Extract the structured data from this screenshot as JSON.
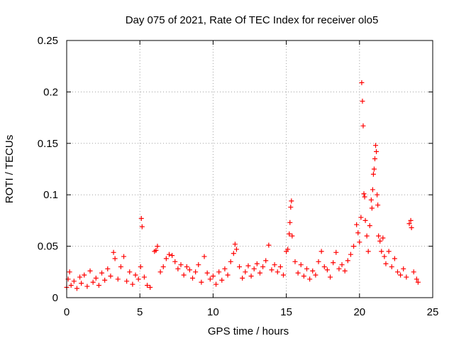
{
  "chart_data": {
    "type": "scatter",
    "title": "Day 075 of 2021, Rate Of TEC Index for receiver olo5",
    "xlabel": "GPS time / hours",
    "ylabel": "ROTI / TECUs",
    "xlim": [
      0,
      25
    ],
    "ylim": [
      0,
      0.25
    ],
    "xticks": [
      "0",
      "5",
      "10",
      "15",
      "20",
      "25"
    ],
    "yticks": [
      "0",
      "0.05",
      "0.1",
      "0.15",
      "0.2",
      "0.25"
    ],
    "grid": true,
    "marker": "+",
    "color": "#ff0000",
    "series": [
      {
        "points": [
          [
            0.0,
            0.01
          ],
          [
            0.1,
            0.018
          ],
          [
            0.2,
            0.025
          ],
          [
            0.3,
            0.012
          ],
          [
            0.5,
            0.016
          ],
          [
            0.7,
            0.009
          ],
          [
            0.9,
            0.02
          ],
          [
            1.0,
            0.014
          ],
          [
            1.2,
            0.022
          ],
          [
            1.4,
            0.011
          ],
          [
            1.6,
            0.026
          ],
          [
            1.8,
            0.015
          ],
          [
            2.0,
            0.019
          ],
          [
            2.2,
            0.012
          ],
          [
            2.4,
            0.024
          ],
          [
            2.6,
            0.017
          ],
          [
            2.8,
            0.028
          ],
          [
            3.0,
            0.021
          ],
          [
            3.2,
            0.044
          ],
          [
            3.3,
            0.038
          ],
          [
            3.5,
            0.018
          ],
          [
            3.7,
            0.03
          ],
          [
            3.9,
            0.04
          ],
          [
            4.1,
            0.016
          ],
          [
            4.3,
            0.025
          ],
          [
            4.5,
            0.013
          ],
          [
            4.7,
            0.022
          ],
          [
            4.9,
            0.018
          ],
          [
            5.05,
            0.03
          ],
          [
            5.1,
            0.077
          ],
          [
            5.15,
            0.069
          ],
          [
            5.3,
            0.02
          ],
          [
            5.5,
            0.012
          ],
          [
            5.7,
            0.01
          ],
          [
            6.0,
            0.045
          ],
          [
            6.1,
            0.046
          ],
          [
            6.2,
            0.05
          ],
          [
            6.4,
            0.025
          ],
          [
            6.6,
            0.03
          ],
          [
            6.8,
            0.038
          ],
          [
            7.0,
            0.042
          ],
          [
            7.2,
            0.041
          ],
          [
            7.4,
            0.035
          ],
          [
            7.6,
            0.028
          ],
          [
            7.8,
            0.032
          ],
          [
            8.0,
            0.022
          ],
          [
            8.2,
            0.03
          ],
          [
            8.4,
            0.027
          ],
          [
            8.6,
            0.019
          ],
          [
            8.8,
            0.025
          ],
          [
            9.0,
            0.032
          ],
          [
            9.2,
            0.015
          ],
          [
            9.4,
            0.04
          ],
          [
            9.6,
            0.024
          ],
          [
            9.8,
            0.018
          ],
          [
            10.0,
            0.021
          ],
          [
            10.2,
            0.013
          ],
          [
            10.4,
            0.025
          ],
          [
            10.6,
            0.017
          ],
          [
            10.8,
            0.028
          ],
          [
            11.0,
            0.022
          ],
          [
            11.2,
            0.035
          ],
          [
            11.4,
            0.043
          ],
          [
            11.5,
            0.052
          ],
          [
            11.6,
            0.047
          ],
          [
            11.8,
            0.03
          ],
          [
            12.0,
            0.019
          ],
          [
            12.2,
            0.025
          ],
          [
            12.4,
            0.031
          ],
          [
            12.6,
            0.021
          ],
          [
            12.8,
            0.028
          ],
          [
            13.0,
            0.033
          ],
          [
            13.2,
            0.024
          ],
          [
            13.4,
            0.03
          ],
          [
            13.6,
            0.036
          ],
          [
            13.8,
            0.051
          ],
          [
            14.0,
            0.027
          ],
          [
            14.2,
            0.032
          ],
          [
            14.4,
            0.025
          ],
          [
            14.6,
            0.03
          ],
          [
            14.8,
            0.022
          ],
          [
            15.0,
            0.045
          ],
          [
            15.1,
            0.047
          ],
          [
            15.2,
            0.062
          ],
          [
            15.25,
            0.073
          ],
          [
            15.3,
            0.088
          ],
          [
            15.35,
            0.094
          ],
          [
            15.4,
            0.06
          ],
          [
            15.6,
            0.035
          ],
          [
            15.8,
            0.024
          ],
          [
            16.0,
            0.032
          ],
          [
            16.2,
            0.021
          ],
          [
            16.4,
            0.028
          ],
          [
            16.6,
            0.018
          ],
          [
            16.8,
            0.026
          ],
          [
            17.0,
            0.022
          ],
          [
            17.2,
            0.035
          ],
          [
            17.4,
            0.045
          ],
          [
            17.6,
            0.03
          ],
          [
            17.8,
            0.027
          ],
          [
            18.0,
            0.02
          ],
          [
            18.2,
            0.034
          ],
          [
            18.4,
            0.044
          ],
          [
            18.6,
            0.028
          ],
          [
            18.8,
            0.032
          ],
          [
            19.0,
            0.026
          ],
          [
            19.2,
            0.036
          ],
          [
            19.4,
            0.042
          ],
          [
            19.6,
            0.05
          ],
          [
            19.8,
            0.071
          ],
          [
            19.9,
            0.063
          ],
          [
            20.0,
            0.054
          ],
          [
            20.1,
            0.078
          ],
          [
            20.15,
            0.209
          ],
          [
            20.2,
            0.191
          ],
          [
            20.25,
            0.167
          ],
          [
            20.3,
            0.101
          ],
          [
            20.35,
            0.098
          ],
          [
            20.4,
            0.075
          ],
          [
            20.5,
            0.06
          ],
          [
            20.6,
            0.045
          ],
          [
            20.7,
            0.07
          ],
          [
            20.8,
            0.095
          ],
          [
            20.85,
            0.087
          ],
          [
            20.9,
            0.105
          ],
          [
            20.95,
            0.12
          ],
          [
            21.0,
            0.125
          ],
          [
            21.05,
            0.135
          ],
          [
            21.1,
            0.148
          ],
          [
            21.15,
            0.142
          ],
          [
            21.2,
            0.1
          ],
          [
            21.25,
            0.09
          ],
          [
            21.3,
            0.06
          ],
          [
            21.4,
            0.055
          ],
          [
            21.5,
            0.045
          ],
          [
            21.6,
            0.058
          ],
          [
            21.7,
            0.04
          ],
          [
            21.8,
            0.033
          ],
          [
            22.0,
            0.045
          ],
          [
            22.2,
            0.03
          ],
          [
            22.4,
            0.038
          ],
          [
            22.6,
            0.025
          ],
          [
            22.8,
            0.022
          ],
          [
            23.0,
            0.028
          ],
          [
            23.2,
            0.02
          ],
          [
            23.4,
            0.072
          ],
          [
            23.5,
            0.075
          ],
          [
            23.55,
            0.068
          ],
          [
            23.7,
            0.025
          ],
          [
            23.9,
            0.018
          ],
          [
            24.0,
            0.015
          ]
        ]
      }
    ]
  }
}
